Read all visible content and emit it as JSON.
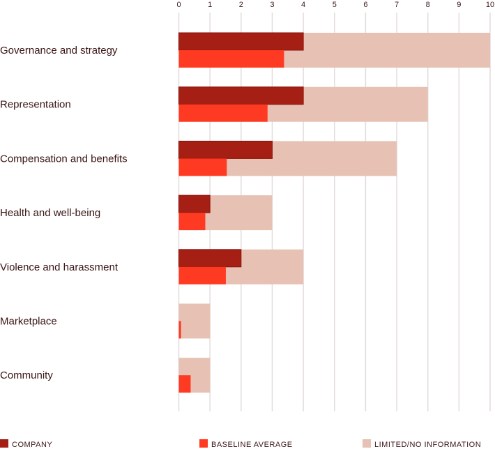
{
  "chart_data": {
    "type": "bar",
    "orientation": "horizontal",
    "categories": [
      "Governance and strategy",
      "Representation",
      "Compensation and benefits",
      "Health and well-being",
      "Violence and harassment",
      "Marketplace",
      "Community"
    ],
    "series": [
      {
        "name": "COMPANY",
        "color": "#a51f14",
        "values": [
          4,
          4,
          3,
          1,
          2,
          0,
          0
        ]
      },
      {
        "name": "BASELINE AVERAGE",
        "color": "#ff3a22",
        "values": [
          3.38,
          2.85,
          1.54,
          0.85,
          1.51,
          0.07,
          0.38
        ]
      },
      {
        "name": "LIMITED/NO INFORMATION",
        "color": "#e6c1b4",
        "values": [
          10,
          8,
          7,
          3,
          4,
          1,
          1
        ]
      }
    ],
    "xticks": [
      "0",
      "1",
      "2",
      "3",
      "4",
      "5",
      "6",
      "7",
      "8",
      "9",
      "10"
    ],
    "xlim": [
      0,
      10
    ],
    "grid": true,
    "legend_position": "bottom"
  }
}
